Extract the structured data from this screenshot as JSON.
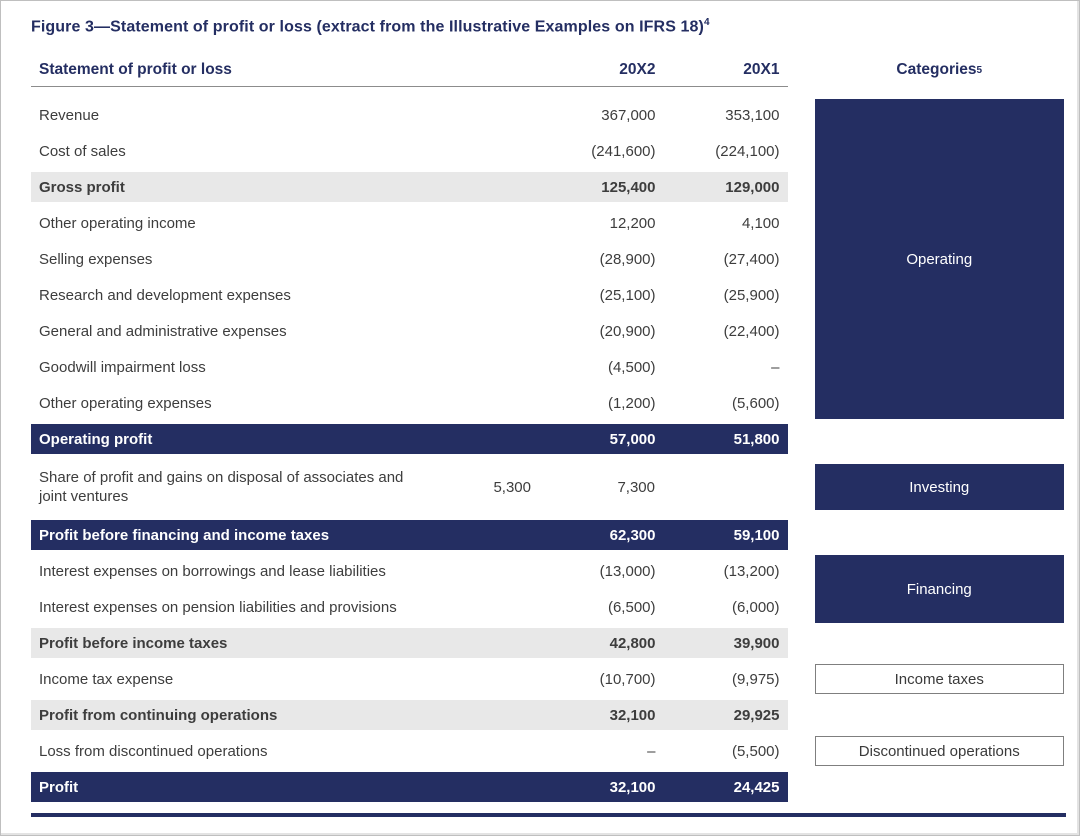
{
  "figure": {
    "title": "Figure 3—Statement of profit or loss (extract from the Illustrative Examples on IFRS 18)",
    "title_sup": "4"
  },
  "table": {
    "header": {
      "label": "Statement of profit or loss",
      "col_20x2": "20X2",
      "col_20x1": "20X1"
    },
    "rows": [
      {
        "label": "Revenue",
        "v20x2": "367,000",
        "v20x1": "353,100",
        "style": "normal"
      },
      {
        "label": "Cost of sales",
        "v20x2": "(241,600)",
        "v20x1": "(224,100)",
        "style": "normal"
      },
      {
        "label": "Gross profit",
        "v20x2": "125,400",
        "v20x1": "129,000",
        "style": "gray"
      },
      {
        "label": "Other operating income",
        "v20x2": "12,200",
        "v20x1": "4,100",
        "style": "normal"
      },
      {
        "label": "Selling expenses",
        "v20x2": "(28,900)",
        "v20x1": "(27,400)",
        "style": "normal"
      },
      {
        "label": "Research and development expenses",
        "v20x2": "(25,100)",
        "v20x1": "(25,900)",
        "style": "normal"
      },
      {
        "label": "General and administrative expenses",
        "v20x2": "(20,900)",
        "v20x1": "(22,400)",
        "style": "normal"
      },
      {
        "label": "Goodwill impairment loss",
        "v20x2": "(4,500)",
        "v20x1": "–",
        "style": "normal"
      },
      {
        "label": "Other operating expenses",
        "v20x2": "(1,200)",
        "v20x1": "(5,600)",
        "style": "normal"
      },
      {
        "label": "Operating profit",
        "v20x2": "57,000",
        "v20x1": "51,800",
        "style": "navy"
      },
      {
        "label": "Share of profit and gains on disposal of associates and joint ventures",
        "v20x2": "5,300",
        "v20x1": "7,300",
        "style": "normal"
      },
      {
        "label": "Profit before financing and income taxes",
        "v20x2": "62,300",
        "v20x1": "59,100",
        "style": "navy"
      },
      {
        "label": "Interest expenses on borrowings and lease liabilities",
        "v20x2": "(13,000)",
        "v20x1": "(13,200)",
        "style": "normal"
      },
      {
        "label": "Interest expenses on pension liabilities and provisions",
        "v20x2": "(6,500)",
        "v20x1": "(6,000)",
        "style": "normal"
      },
      {
        "label": "Profit before income taxes",
        "v20x2": "42,800",
        "v20x1": "39,900",
        "style": "gray"
      },
      {
        "label": "Income tax expense",
        "v20x2": "(10,700)",
        "v20x1": "(9,975)",
        "style": "normal"
      },
      {
        "label": "Profit from continuing operations",
        "v20x2": "32,100",
        "v20x1": "29,925",
        "style": "gray"
      },
      {
        "label": "Loss from discontinued operations",
        "v20x2": "–",
        "v20x1": "(5,500)",
        "style": "normal"
      },
      {
        "label": "Profit",
        "v20x2": "32,100",
        "v20x1": "24,425",
        "style": "navy"
      }
    ]
  },
  "categories": {
    "header": "Categories",
    "header_sup": "5",
    "items": [
      {
        "label": "Operating",
        "variant": "filled",
        "row_start": 0,
        "row_end": 8
      },
      {
        "label": "Investing",
        "variant": "filled",
        "row_start": 10,
        "row_end": 10
      },
      {
        "label": "Financing",
        "variant": "filled",
        "row_start": 12,
        "row_end": 13
      },
      {
        "label": "Income taxes",
        "variant": "outline",
        "row_start": 15,
        "row_end": 15
      },
      {
        "label": "Discontinued operations",
        "variant": "outline",
        "row_start": 17,
        "row_end": 17
      }
    ]
  },
  "colors": {
    "navy": "#242e62",
    "band_gray": "#e8e8e8",
    "text": "#3d3d3d",
    "header_line": "#8c8c8c",
    "outline_box_border": "#7f7f7f"
  }
}
